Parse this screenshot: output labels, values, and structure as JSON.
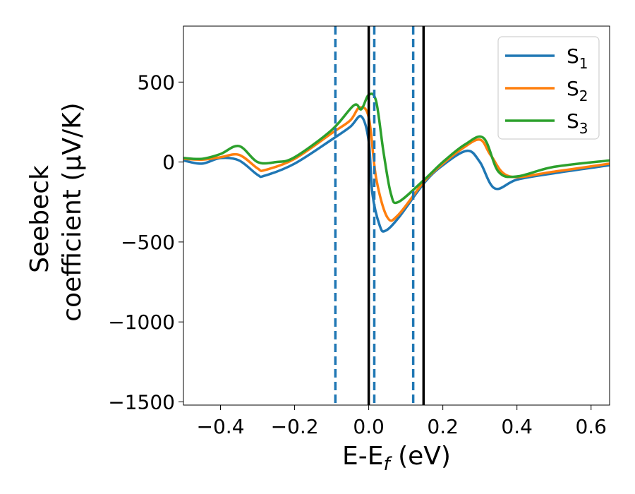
{
  "chart_data": {
    "type": "line",
    "xlabel": "E-E",
    "xlabel_sub": "f",
    "xlabel_unit": "(eV)",
    "ylabel_line1": "Seebeck",
    "ylabel_line2": "coefficient  (μV/K)",
    "xlim": [
      -0.5,
      0.65
    ],
    "ylim": [
      -1520,
      850
    ],
    "xticks": [
      -0.4,
      -0.2,
      0.0,
      0.2,
      0.4,
      0.6
    ],
    "xtick_labels": [
      "−0.4",
      "−0.2",
      "0.0",
      "0.2",
      "0.4",
      "0.6"
    ],
    "yticks": [
      500,
      0,
      -500,
      -1000,
      -1500
    ],
    "ytick_labels": [
      "500",
      "0",
      "−500",
      "−1000",
      "−1500"
    ],
    "grid": false,
    "legend_position": "top-right",
    "vlines": [
      {
        "x": -0.09,
        "style": "dashed",
        "color": "#1f77b4"
      },
      {
        "x": 0.0,
        "style": "solid",
        "color": "#000000"
      },
      {
        "x": 0.015,
        "style": "dashed",
        "color": "#1f77b4"
      },
      {
        "x": 0.12,
        "style": "dashed",
        "color": "#1f77b4"
      },
      {
        "x": 0.148,
        "style": "solid",
        "color": "#000000"
      }
    ],
    "series": [
      {
        "name": "S",
        "sub": "1",
        "color": "#1f77b4",
        "x": [
          -0.5,
          -0.45,
          -0.4,
          -0.35,
          -0.3,
          -0.28,
          -0.2,
          -0.1,
          -0.05,
          -0.02,
          0.0,
          0.01,
          0.03,
          0.045,
          0.08,
          0.15,
          0.2,
          0.265,
          0.3,
          0.34,
          0.4,
          0.5,
          0.65
        ],
        "y": [
          10,
          -10,
          25,
          10,
          -80,
          -85,
          -10,
          140,
          220,
          285,
          130,
          -200,
          -400,
          -430,
          -350,
          -130,
          -20,
          70,
          0,
          -165,
          -110,
          -70,
          -20
        ]
      },
      {
        "name": "S",
        "sub": "2",
        "color": "#ff7f0e",
        "x": [
          -0.5,
          -0.45,
          -0.4,
          -0.35,
          -0.3,
          -0.28,
          -0.2,
          -0.1,
          -0.05,
          -0.025,
          0.0,
          0.02,
          0.05,
          0.08,
          0.15,
          0.2,
          0.25,
          0.3,
          0.33,
          0.38,
          0.5,
          0.65
        ],
        "y": [
          20,
          15,
          30,
          45,
          -40,
          -50,
          20,
          180,
          260,
          340,
          280,
          -100,
          -345,
          -330,
          -120,
          -10,
          80,
          140,
          40,
          -90,
          -60,
          -10
        ]
      },
      {
        "name": "S",
        "sub": "3",
        "color": "#2ca02c",
        "x": [
          -0.5,
          -0.45,
          -0.4,
          -0.35,
          -0.3,
          -0.25,
          -0.2,
          -0.1,
          -0.04,
          -0.02,
          0.0,
          0.02,
          0.04,
          0.06,
          0.08,
          0.15,
          0.2,
          0.26,
          0.31,
          0.35,
          0.4,
          0.5,
          0.65
        ],
        "y": [
          25,
          20,
          50,
          100,
          0,
          0,
          30,
          200,
          355,
          330,
          420,
          380,
          60,
          -200,
          -250,
          -110,
          0,
          110,
          150,
          -60,
          -90,
          -30,
          10
        ]
      }
    ]
  }
}
